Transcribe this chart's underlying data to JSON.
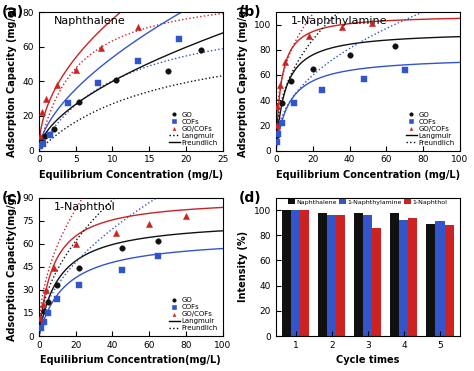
{
  "panel_a": {
    "title": "Naphthalene",
    "xlabel": "Equilibrium Concentration (mg/L)",
    "ylabel": "Adsorption Capacity (mg/g)",
    "xlim": [
      0,
      25
    ],
    "ylim": [
      0,
      80
    ],
    "xticks": [
      0,
      5,
      10,
      15,
      20,
      25
    ],
    "yticks": [
      0,
      20,
      40,
      60,
      80
    ],
    "GO_x": [
      0.3,
      0.8,
      2.0,
      5.5,
      10.5,
      17.5,
      22.0
    ],
    "GO_y": [
      6.0,
      8.5,
      12.5,
      28.0,
      40.5,
      46.0,
      58.0
    ],
    "COFs_x": [
      0.2,
      0.5,
      1.5,
      4.0,
      8.0,
      13.5,
      19.0
    ],
    "COFs_y": [
      2.5,
      4.0,
      9.0,
      27.5,
      39.0,
      51.5,
      64.5
    ],
    "GOCOFs_x": [
      0.15,
      0.4,
      1.0,
      2.5,
      5.0,
      8.5,
      13.5
    ],
    "GOCOFs_y": [
      8.5,
      22.5,
      30.0,
      38.0,
      46.5,
      59.0,
      71.5
    ],
    "GO_lang_params": [
      72,
      0.06
    ],
    "COFs_lang_params": [
      85,
      0.09
    ],
    "GOCOFs_lang_params": [
      95,
      0.2
    ],
    "GO_freund_params": [
      10.5,
      0.58
    ],
    "COFs_freund_params": [
      13.5,
      0.6
    ],
    "GOCOFs_freund_params": [
      24.0,
      0.5
    ],
    "legend_loc": "lower right"
  },
  "panel_b": {
    "title": "1-Naphthylamine",
    "xlabel": "Equilibrium Concentration (mg/L)",
    "ylabel": "Adsorption Capacity (mg/g)",
    "xlim": [
      0,
      100
    ],
    "ylim": [
      0,
      110
    ],
    "xticks": [
      0,
      20,
      40,
      60,
      80,
      100
    ],
    "yticks": [
      0,
      20,
      40,
      60,
      80,
      100
    ],
    "GO_x": [
      0.4,
      1.2,
      3.0,
      8.0,
      20.0,
      40.0,
      65.0
    ],
    "GO_y": [
      12.0,
      22.0,
      38.0,
      55.0,
      65.0,
      76.0,
      83.0
    ],
    "COFs_x": [
      0.4,
      1.2,
      3.0,
      10.0,
      25.0,
      48.0,
      70.0
    ],
    "COFs_y": [
      7.0,
      13.0,
      22.0,
      38.0,
      48.0,
      57.0,
      64.0
    ],
    "GOCOFs_x": [
      0.3,
      0.8,
      2.0,
      5.0,
      18.0,
      36.0,
      52.0
    ],
    "GOCOFs_y": [
      20.0,
      35.0,
      52.0,
      70.0,
      91.0,
      98.0,
      101.0
    ],
    "GO_lang_params": [
      95,
      0.2
    ],
    "COFs_lang_params": [
      75,
      0.14
    ],
    "GOCOFs_lang_params": [
      108,
      0.35
    ],
    "GO_freund_params": [
      25.0,
      0.42
    ],
    "COFs_freund_params": [
      16.0,
      0.44
    ],
    "GOCOFs_freund_params": [
      38.0,
      0.35
    ],
    "legend_loc": "lower right"
  },
  "panel_c": {
    "title": "1-Naphthol",
    "xlabel": "Equilibrium Concentration(mg/L)",
    "ylabel": "Adsorption Capacity(mg/g)",
    "xlim": [
      0,
      100
    ],
    "ylim": [
      0,
      90
    ],
    "xticks": [
      0,
      20,
      40,
      60,
      80,
      100
    ],
    "yticks": [
      0,
      15,
      30,
      45,
      60,
      75,
      90
    ],
    "GO_x": [
      1.0,
      2.5,
      5.0,
      10.0,
      22.0,
      45.0,
      65.0
    ],
    "GO_y": [
      9.0,
      16.0,
      22.0,
      33.0,
      44.0,
      57.0,
      62.0
    ],
    "COFs_x": [
      1.0,
      2.5,
      5.0,
      10.0,
      22.0,
      45.0,
      65.0
    ],
    "COFs_y": [
      5.0,
      9.0,
      15.0,
      24.0,
      33.0,
      43.0,
      52.0
    ],
    "GOCOFs_x": [
      0.8,
      2.0,
      4.0,
      8.0,
      20.0,
      42.0,
      60.0,
      80.0
    ],
    "GOCOFs_y": [
      12.0,
      21.0,
      30.0,
      44.0,
      60.0,
      67.0,
      73.0,
      78.0
    ],
    "GO_lang_params": [
      76,
      0.09
    ],
    "COFs_lang_params": [
      65,
      0.07
    ],
    "GOCOFs_lang_params": [
      90,
      0.13
    ],
    "GO_freund_params": [
      13.0,
      0.52
    ],
    "COFs_freund_params": [
      9.5,
      0.54
    ],
    "GOCOFs_freund_params": [
      19.0,
      0.49
    ],
    "legend_loc": "lower right"
  },
  "panel_d": {
    "xlabel": "Cycle times",
    "ylabel": "Intensity (%)",
    "ylim": [
      0,
      110
    ],
    "yticks": [
      0,
      20,
      40,
      60,
      80,
      100
    ],
    "cycles": [
      1,
      2,
      3,
      4,
      5
    ],
    "naph_vals": [
      100,
      98,
      98,
      98,
      89
    ],
    "naphamine_vals": [
      100,
      96,
      96,
      92,
      91
    ],
    "naphthol_vals": [
      100,
      96,
      86,
      94,
      88
    ],
    "bar_colors": [
      "#111111",
      "#3355cc",
      "#cc2222"
    ],
    "bar_labels": [
      "Naphthalene",
      "1-Naphthylamine",
      "1-Naphthol"
    ]
  },
  "go_color": "#111111",
  "cofs_color": "#3355cc",
  "gocofs_color": "#cc2222",
  "label_fontsize": 7,
  "tick_fontsize": 6.5,
  "panel_label_fontsize": 10
}
